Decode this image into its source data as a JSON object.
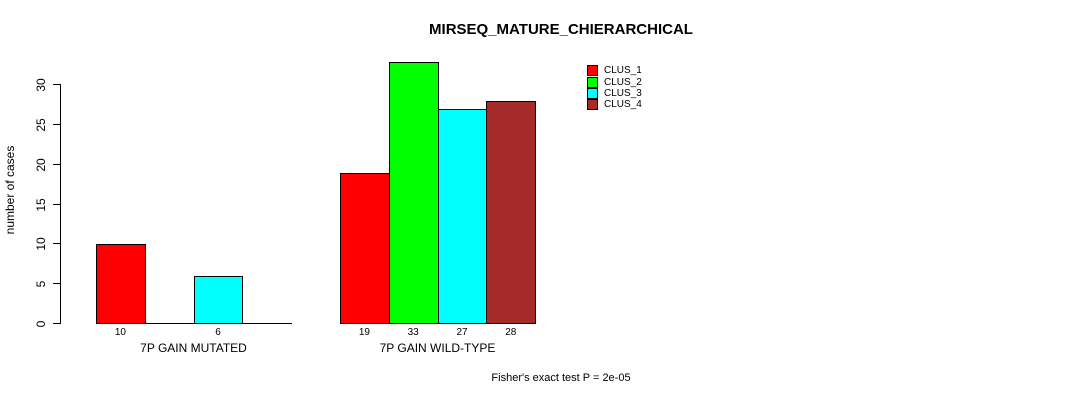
{
  "chart_data": {
    "type": "bar",
    "title": "MIRSEQ_MATURE_CHIERARCHICAL",
    "ylabel": "number of cases",
    "xlabel": "",
    "ylim": [
      0,
      33
    ],
    "yticks": [
      0,
      5,
      10,
      15,
      20,
      25,
      30
    ],
    "categories": [
      "7P GAIN MUTATED",
      "7P GAIN WILD-TYPE"
    ],
    "series": [
      {
        "name": "CLUS_1",
        "color": "#ff0000",
        "values": [
          10,
          19
        ]
      },
      {
        "name": "CLUS_2",
        "color": "#00ff00",
        "values": [
          0,
          33
        ]
      },
      {
        "name": "CLUS_3",
        "color": "#00ffff",
        "values": [
          6,
          27
        ]
      },
      {
        "name": "CLUS_4",
        "color": "#a52a2a",
        "values": [
          0,
          28
        ]
      }
    ],
    "bar_value_labels": {
      "group_1": [
        "10",
        "6"
      ],
      "group_2": [
        "19",
        "33",
        "27",
        "28"
      ],
      "zero_bars_unlabeled": true
    },
    "legend_position": "top-right",
    "legend_entries": [
      "CLUS_1",
      "CLUS_2",
      "CLUS_3",
      "CLUS_4"
    ],
    "grid": false,
    "annotation": "Fisher's exact test P = 2e-05"
  },
  "colors": {
    "background": "#ffffff",
    "axis": "#000000",
    "clus_1": "#ff0000",
    "clus_2": "#00ff00",
    "clus_3": "#00ffff",
    "clus_4": "#a52a2a"
  }
}
